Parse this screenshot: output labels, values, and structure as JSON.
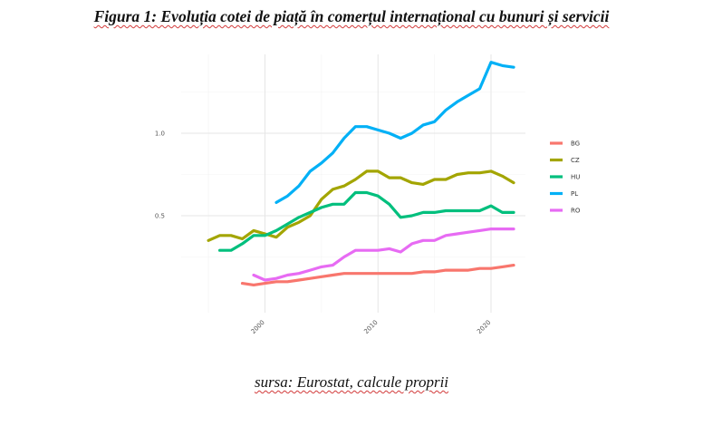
{
  "title": "Figura 1: Evoluția cotei de piață în comerțul internațional cu bunuri și servicii",
  "source": "sursa: Eurostat, calcule proprii",
  "chart_data": {
    "type": "line",
    "title": "",
    "xlabel": "",
    "ylabel": "",
    "xlim": [
      1995,
      2022
    ],
    "ylim": [
      0.05,
      1.5
    ],
    "x_ticks": [
      2000,
      2010,
      2020
    ],
    "y_ticks": [
      0.5,
      1.0
    ],
    "x_tick_labels": [
      "2000",
      "2010",
      "2020"
    ],
    "y_tick_labels": [
      "0.5",
      "1.0"
    ],
    "grid": true,
    "legend_position": "right",
    "series": [
      {
        "name": "BG",
        "color": "#f8766d",
        "x": [
          1998,
          1999,
          2000,
          2001,
          2002,
          2003,
          2004,
          2005,
          2006,
          2007,
          2008,
          2009,
          2010,
          2011,
          2012,
          2013,
          2014,
          2015,
          2016,
          2017,
          2018,
          2019,
          2020,
          2021,
          2022
        ],
        "y": [
          0.09,
          0.08,
          0.09,
          0.1,
          0.1,
          0.11,
          0.12,
          0.13,
          0.14,
          0.15,
          0.15,
          0.15,
          0.15,
          0.15,
          0.15,
          0.15,
          0.16,
          0.16,
          0.17,
          0.17,
          0.17,
          0.18,
          0.18,
          0.19,
          0.2
        ]
      },
      {
        "name": "CZ",
        "color": "#a3a500",
        "x": [
          1995,
          1996,
          1997,
          1998,
          1999,
          2000,
          2001,
          2002,
          2003,
          2004,
          2005,
          2006,
          2007,
          2008,
          2009,
          2010,
          2011,
          2012,
          2013,
          2014,
          2015,
          2016,
          2017,
          2018,
          2019,
          2020,
          2021,
          2022
        ],
        "y": [
          0.35,
          0.38,
          0.38,
          0.36,
          0.41,
          0.39,
          0.37,
          0.43,
          0.46,
          0.5,
          0.6,
          0.66,
          0.68,
          0.72,
          0.77,
          0.77,
          0.73,
          0.73,
          0.7,
          0.69,
          0.72,
          0.72,
          0.75,
          0.76,
          0.76,
          0.77,
          0.74,
          0.7
        ]
      },
      {
        "name": "HU",
        "color": "#00bf7d",
        "x": [
          1996,
          1997,
          1998,
          1999,
          2000,
          2001,
          2002,
          2003,
          2004,
          2005,
          2006,
          2007,
          2008,
          2009,
          2010,
          2011,
          2012,
          2013,
          2014,
          2015,
          2016,
          2017,
          2018,
          2019,
          2020,
          2021,
          2022
        ],
        "y": [
          0.29,
          0.29,
          0.33,
          0.38,
          0.38,
          0.41,
          0.45,
          0.49,
          0.52,
          0.55,
          0.57,
          0.57,
          0.64,
          0.64,
          0.62,
          0.57,
          0.49,
          0.5,
          0.52,
          0.52,
          0.53,
          0.53,
          0.53,
          0.53,
          0.56,
          0.52,
          0.52
        ]
      },
      {
        "name": "PL",
        "color": "#00b0f6",
        "x": [
          2001,
          2002,
          2003,
          2004,
          2005,
          2006,
          2007,
          2008,
          2009,
          2010,
          2011,
          2012,
          2013,
          2014,
          2015,
          2016,
          2017,
          2018,
          2019,
          2020,
          2021,
          2022
        ],
        "y": [
          0.58,
          0.62,
          0.68,
          0.77,
          0.82,
          0.88,
          0.97,
          1.04,
          1.04,
          1.02,
          1.0,
          0.97,
          1.0,
          1.05,
          1.07,
          1.14,
          1.19,
          1.23,
          1.27,
          1.43,
          1.41,
          1.4
        ]
      },
      {
        "name": "RO",
        "color": "#e76bf3",
        "x": [
          1999,
          2000,
          2001,
          2002,
          2003,
          2004,
          2005,
          2006,
          2007,
          2008,
          2009,
          2010,
          2011,
          2012,
          2013,
          2014,
          2015,
          2016,
          2017,
          2018,
          2019,
          2020,
          2021,
          2022
        ],
        "y": [
          0.14,
          0.11,
          0.12,
          0.14,
          0.15,
          0.17,
          0.19,
          0.2,
          0.25,
          0.29,
          0.29,
          0.29,
          0.3,
          0.28,
          0.33,
          0.35,
          0.35,
          0.38,
          0.39,
          0.4,
          0.41,
          0.42,
          0.42,
          0.42
        ]
      }
    ]
  }
}
